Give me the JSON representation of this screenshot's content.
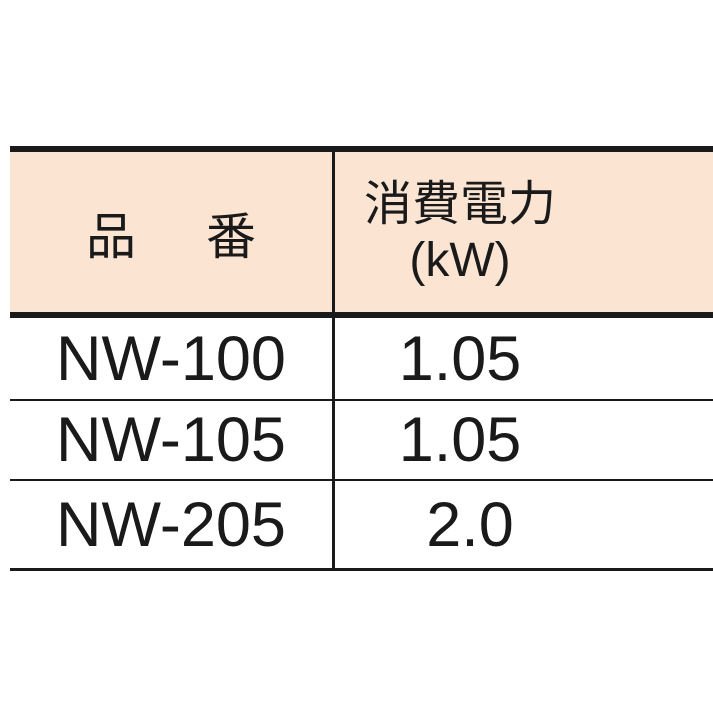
{
  "table": {
    "header_bg": "#fbe4d2",
    "columns": [
      {
        "label_part1": "品",
        "label_part2": "番"
      },
      {
        "label_line1": "消費電力",
        "label_line2": "(kW)"
      }
    ],
    "rows": [
      {
        "model": "NW-100",
        "power": "1.05"
      },
      {
        "model": "NW-105",
        "power": "1.05"
      },
      {
        "model": "NW-205",
        "power": "2.0"
      }
    ]
  }
}
